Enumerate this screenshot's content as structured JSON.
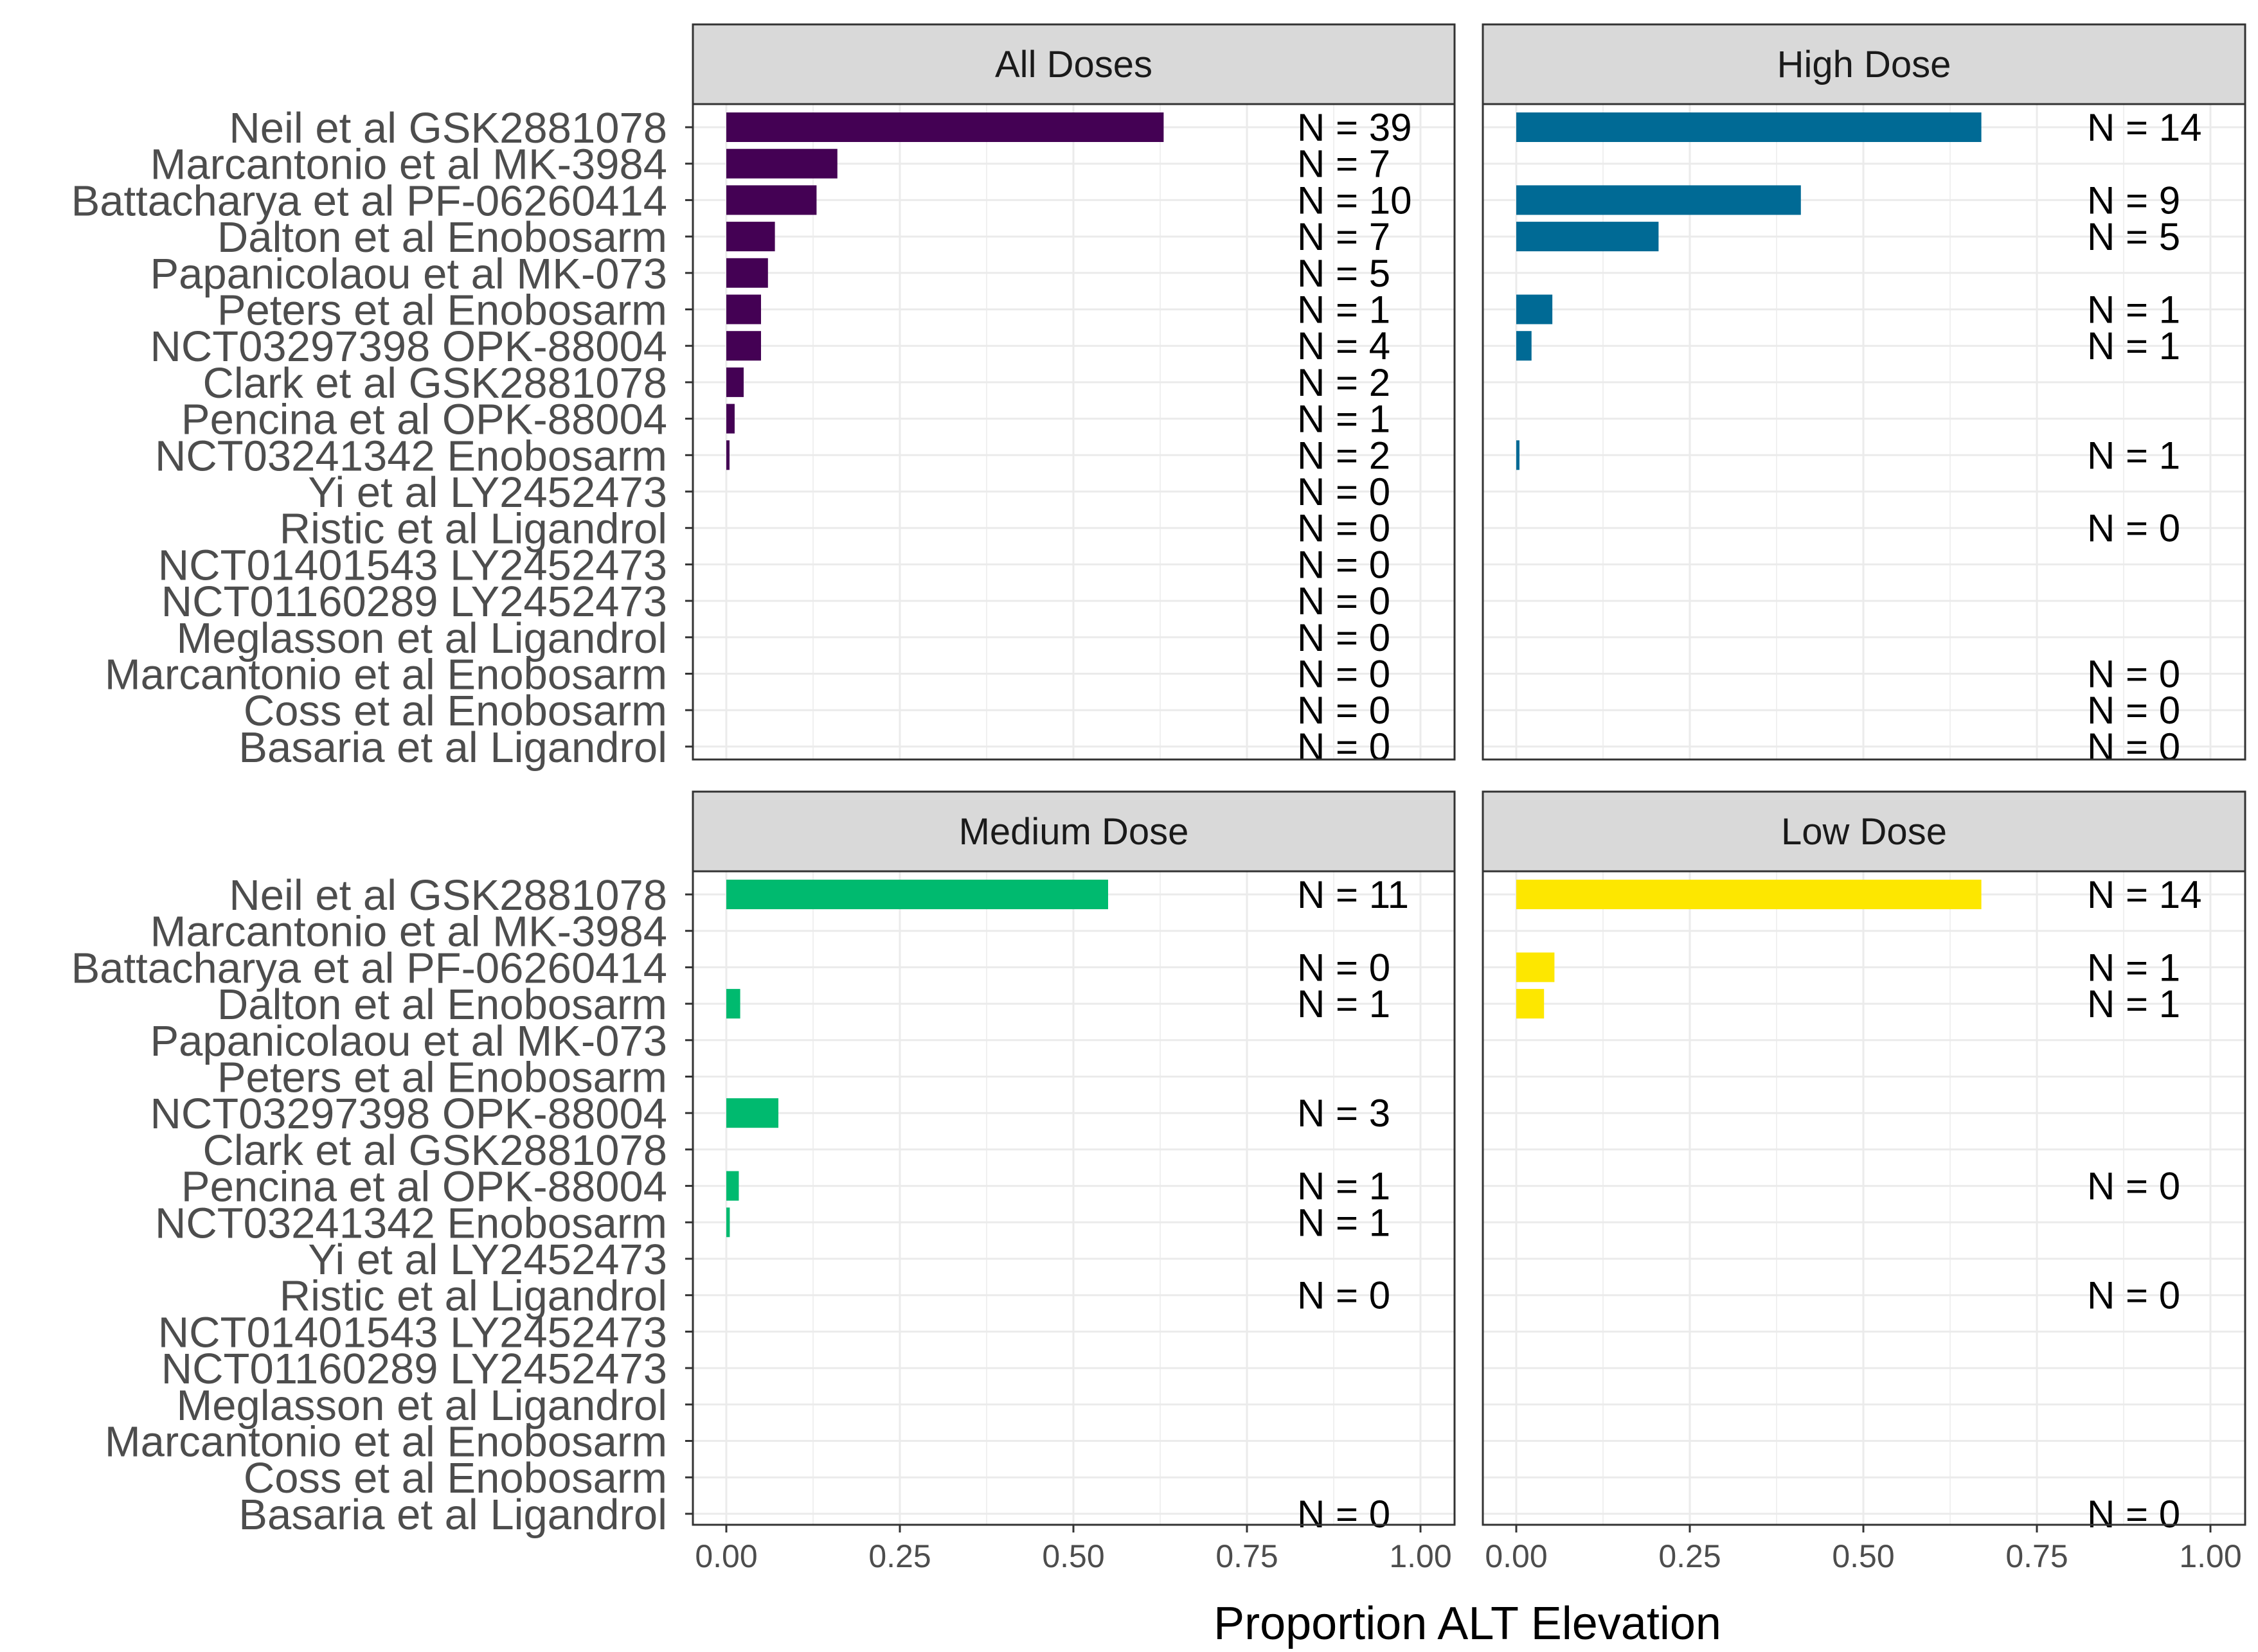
{
  "chart_data": {
    "type": "bar",
    "orientation": "horizontal",
    "xlabel": "Proportion ALT Elevation",
    "ylabel": "",
    "xlim": [
      0,
      1
    ],
    "x_ticks": [
      "0.00",
      "0.25",
      "0.50",
      "0.75",
      "1.00"
    ],
    "categories": [
      "Neil et al GSK2881078",
      "Marcantonio et al MK-3984",
      "Battacharya et al PF-06260414",
      "Dalton et al Enobosarm",
      "Papanicolaou et al MK-073",
      "Peters et al Enobosarm",
      "NCT03297398 OPK-88004",
      "Clark et al GSK2881078",
      "Pencina et al OPK-88004",
      "NCT03241342 Enobosarm",
      "Yi et al LY2452473",
      "Ristic et al Ligandrol",
      "NCT01401543 LY2452473",
      "NCT01160289 LY2452473",
      "Meglasson et al Ligandrol",
      "Marcantonio et al Enobosarm",
      "Coss et al Enobosarm",
      "Basaria et al Ligandrol"
    ],
    "grid": true,
    "panels": [
      {
        "name": "All Doses",
        "color": "#440154",
        "values": [
          0.63,
          0.16,
          0.13,
          0.07,
          0.06,
          0.05,
          0.05,
          0.025,
          0.012,
          0.004,
          0,
          0,
          0,
          0,
          0,
          0,
          0,
          0
        ],
        "n_labels": [
          "N =  39",
          "N =  7",
          "N =  10",
          "N =  7",
          "N =  5",
          "N =  1",
          "N =  4",
          "N =  2",
          "N =  1",
          "N =  2",
          "N =  0",
          "N =  0",
          "N =  0",
          "N =  0",
          "N =  0",
          "N =  0",
          "N =  0",
          "N =  0"
        ]
      },
      {
        "name": "High Dose",
        "color": "#006a95",
        "values": [
          0.67,
          null,
          0.41,
          0.205,
          null,
          0.052,
          0.022,
          null,
          null,
          0.003,
          null,
          0,
          null,
          null,
          null,
          0,
          0,
          0
        ],
        "n_labels": [
          "N =  14",
          null,
          "N =  9",
          "N =  5",
          null,
          "N =  1",
          "N =  1",
          null,
          null,
          "N =  1",
          null,
          "N =  0",
          null,
          null,
          null,
          "N =  0",
          "N =  0",
          "N =  0"
        ]
      },
      {
        "name": "Medium Dose",
        "color": "#00ba6f",
        "values": [
          0.55,
          null,
          0,
          0.02,
          null,
          null,
          0.075,
          null,
          0.018,
          0.005,
          null,
          0,
          null,
          null,
          null,
          null,
          null,
          0
        ],
        "n_labels": [
          "N =  11",
          null,
          "N =  0",
          "N =  1",
          null,
          null,
          "N =  3",
          null,
          "N =  1",
          "N =  1",
          null,
          "N =  0",
          null,
          null,
          null,
          null,
          null,
          "N =  0"
        ]
      },
      {
        "name": "Low Dose",
        "color": "#fde700",
        "values": [
          0.67,
          null,
          0.055,
          0.04,
          null,
          null,
          null,
          null,
          0,
          null,
          null,
          0,
          null,
          null,
          null,
          null,
          null,
          0
        ],
        "n_labels": [
          "N =  14",
          null,
          "N =  1",
          "N =  1",
          null,
          null,
          null,
          null,
          "N =  0",
          null,
          null,
          "N =  0",
          null,
          null,
          null,
          null,
          null,
          "N =  0"
        ]
      }
    ]
  }
}
